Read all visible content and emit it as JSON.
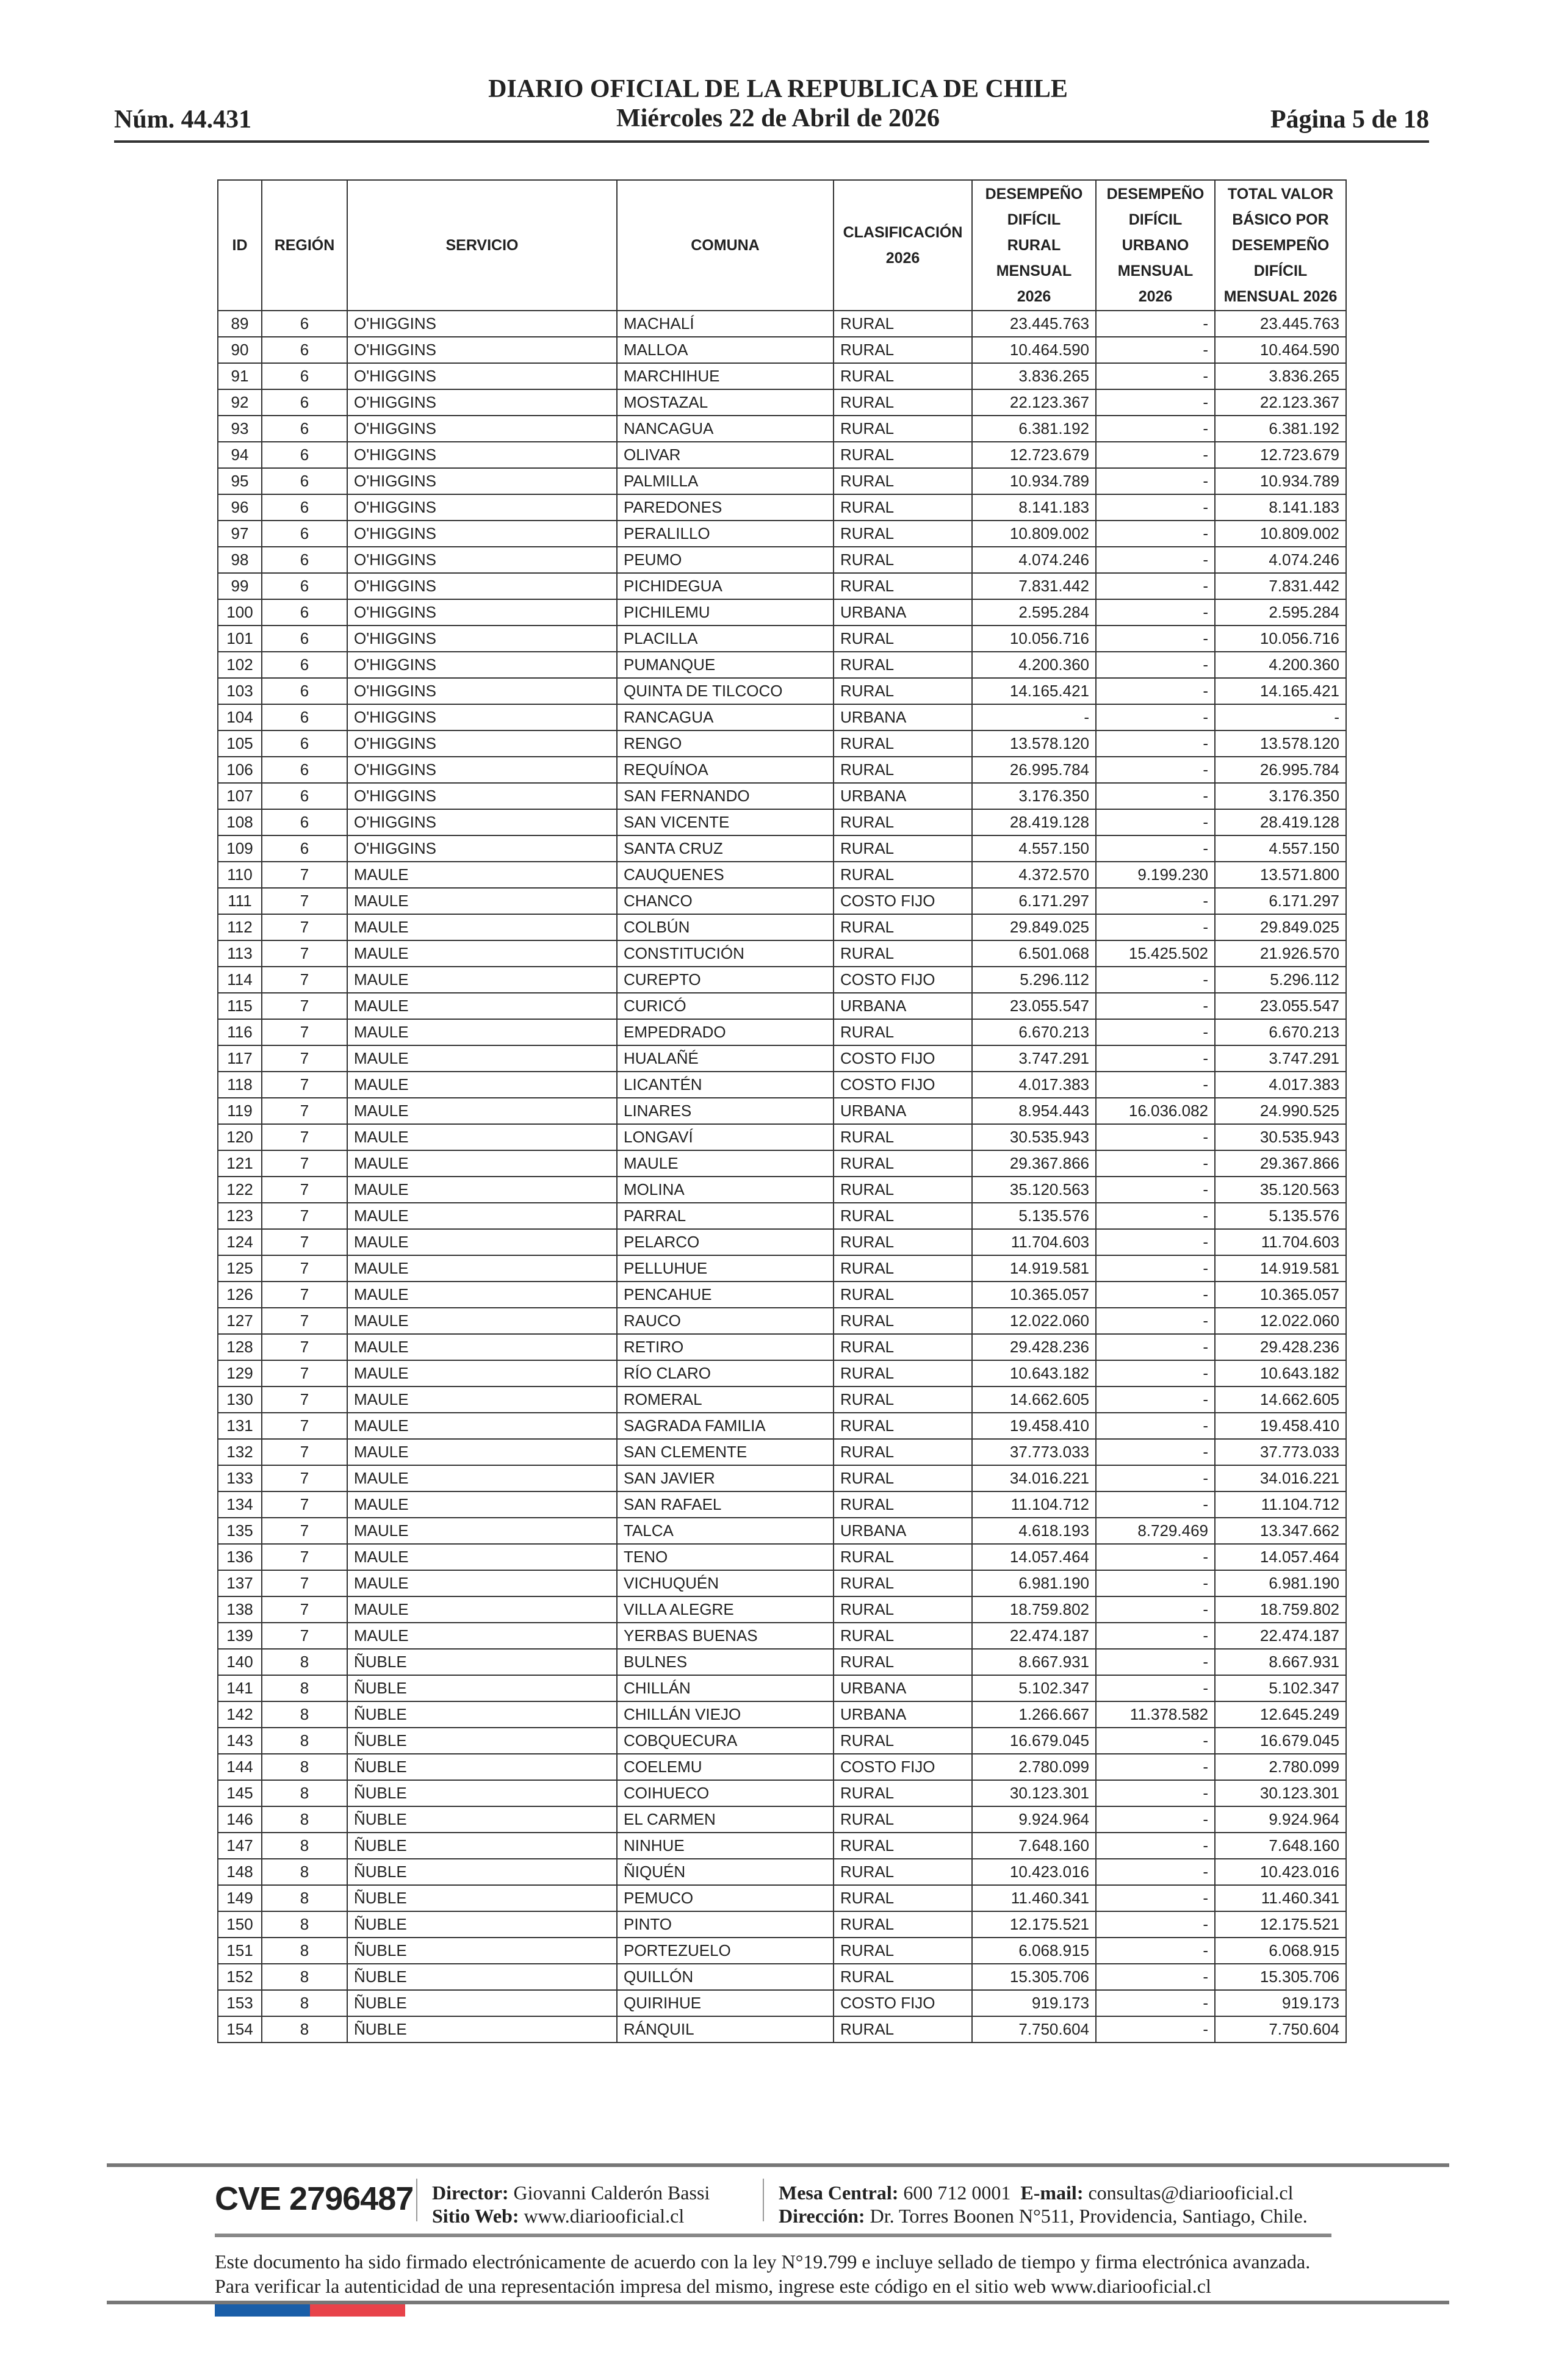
{
  "header": {
    "title": "DIARIO OFICIAL DE LA REPUBLICA DE CHILE",
    "date": "Miércoles 22 de Abril de 2026",
    "number": "Núm. 44.431",
    "page": "Página 5 de 18"
  },
  "table": {
    "columns": [
      "ID",
      "REGIÓN",
      "SERVICIO",
      "COMUNA",
      "CLASIFICACIÓN 2026",
      "DESEMPEÑO DIFÍCIL RURAL MENSUAL 2026",
      "DESEMPEÑO DIFÍCIL URBANO MENSUAL 2026",
      "TOTAL VALOR BÁSICO POR DESEMPEÑO DIFÍCIL MENSUAL 2026"
    ],
    "rows": [
      [
        "89",
        "6",
        "O'HIGGINS",
        "MACHALÍ",
        "RURAL",
        "23.445.763",
        "-",
        "23.445.763"
      ],
      [
        "90",
        "6",
        "O'HIGGINS",
        "MALLOA",
        "RURAL",
        "10.464.590",
        "-",
        "10.464.590"
      ],
      [
        "91",
        "6",
        "O'HIGGINS",
        "MARCHIHUE",
        "RURAL",
        "3.836.265",
        "-",
        "3.836.265"
      ],
      [
        "92",
        "6",
        "O'HIGGINS",
        "MOSTAZAL",
        "RURAL",
        "22.123.367",
        "-",
        "22.123.367"
      ],
      [
        "93",
        "6",
        "O'HIGGINS",
        "NANCAGUA",
        "RURAL",
        "6.381.192",
        "-",
        "6.381.192"
      ],
      [
        "94",
        "6",
        "O'HIGGINS",
        "OLIVAR",
        "RURAL",
        "12.723.679",
        "-",
        "12.723.679"
      ],
      [
        "95",
        "6",
        "O'HIGGINS",
        "PALMILLA",
        "RURAL",
        "10.934.789",
        "-",
        "10.934.789"
      ],
      [
        "96",
        "6",
        "O'HIGGINS",
        "PAREDONES",
        "RURAL",
        "8.141.183",
        "-",
        "8.141.183"
      ],
      [
        "97",
        "6",
        "O'HIGGINS",
        "PERALILLO",
        "RURAL",
        "10.809.002",
        "-",
        "10.809.002"
      ],
      [
        "98",
        "6",
        "O'HIGGINS",
        "PEUMO",
        "RURAL",
        "4.074.246",
        "-",
        "4.074.246"
      ],
      [
        "99",
        "6",
        "O'HIGGINS",
        "PICHIDEGUA",
        "RURAL",
        "7.831.442",
        "-",
        "7.831.442"
      ],
      [
        "100",
        "6",
        "O'HIGGINS",
        "PICHILEMU",
        "URBANA",
        "2.595.284",
        "-",
        "2.595.284"
      ],
      [
        "101",
        "6",
        "O'HIGGINS",
        "PLACILLA",
        "RURAL",
        "10.056.716",
        "-",
        "10.056.716"
      ],
      [
        "102",
        "6",
        "O'HIGGINS",
        "PUMANQUE",
        "RURAL",
        "4.200.360",
        "-",
        "4.200.360"
      ],
      [
        "103",
        "6",
        "O'HIGGINS",
        "QUINTA DE TILCOCO",
        "RURAL",
        "14.165.421",
        "-",
        "14.165.421"
      ],
      [
        "104",
        "6",
        "O'HIGGINS",
        "RANCAGUA",
        "URBANA",
        "-",
        "-",
        "-"
      ],
      [
        "105",
        "6",
        "O'HIGGINS",
        "RENGO",
        "RURAL",
        "13.578.120",
        "-",
        "13.578.120"
      ],
      [
        "106",
        "6",
        "O'HIGGINS",
        "REQUÍNOA",
        "RURAL",
        "26.995.784",
        "-",
        "26.995.784"
      ],
      [
        "107",
        "6",
        "O'HIGGINS",
        "SAN FERNANDO",
        "URBANA",
        "3.176.350",
        "-",
        "3.176.350"
      ],
      [
        "108",
        "6",
        "O'HIGGINS",
        "SAN VICENTE",
        "RURAL",
        "28.419.128",
        "-",
        "28.419.128"
      ],
      [
        "109",
        "6",
        "O'HIGGINS",
        "SANTA CRUZ",
        "RURAL",
        "4.557.150",
        "-",
        "4.557.150"
      ],
      [
        "110",
        "7",
        "MAULE",
        "CAUQUENES",
        "RURAL",
        "4.372.570",
        "9.199.230",
        "13.571.800"
      ],
      [
        "111",
        "7",
        "MAULE",
        "CHANCO",
        "COSTO FIJO",
        "6.171.297",
        "-",
        "6.171.297"
      ],
      [
        "112",
        "7",
        "MAULE",
        "COLBÚN",
        "RURAL",
        "29.849.025",
        "-",
        "29.849.025"
      ],
      [
        "113",
        "7",
        "MAULE",
        "CONSTITUCIÓN",
        "RURAL",
        "6.501.068",
        "15.425.502",
        "21.926.570"
      ],
      [
        "114",
        "7",
        "MAULE",
        "CUREPTO",
        "COSTO FIJO",
        "5.296.112",
        "-",
        "5.296.112"
      ],
      [
        "115",
        "7",
        "MAULE",
        "CURICÓ",
        "URBANA",
        "23.055.547",
        "-",
        "23.055.547"
      ],
      [
        "116",
        "7",
        "MAULE",
        "EMPEDRADO",
        "RURAL",
        "6.670.213",
        "-",
        "6.670.213"
      ],
      [
        "117",
        "7",
        "MAULE",
        "HUALAÑÉ",
        "COSTO FIJO",
        "3.747.291",
        "-",
        "3.747.291"
      ],
      [
        "118",
        "7",
        "MAULE",
        "LICANTÉN",
        "COSTO FIJO",
        "4.017.383",
        "-",
        "4.017.383"
      ],
      [
        "119",
        "7",
        "MAULE",
        "LINARES",
        "URBANA",
        "8.954.443",
        "16.036.082",
        "24.990.525"
      ],
      [
        "120",
        "7",
        "MAULE",
        "LONGAVÍ",
        "RURAL",
        "30.535.943",
        "-",
        "30.535.943"
      ],
      [
        "121",
        "7",
        "MAULE",
        "MAULE",
        "RURAL",
        "29.367.866",
        "-",
        "29.367.866"
      ],
      [
        "122",
        "7",
        "MAULE",
        "MOLINA",
        "RURAL",
        "35.120.563",
        "-",
        "35.120.563"
      ],
      [
        "123",
        "7",
        "MAULE",
        "PARRAL",
        "RURAL",
        "5.135.576",
        "-",
        "5.135.576"
      ],
      [
        "124",
        "7",
        "MAULE",
        "PELARCO",
        "RURAL",
        "11.704.603",
        "-",
        "11.704.603"
      ],
      [
        "125",
        "7",
        "MAULE",
        "PELLUHUE",
        "RURAL",
        "14.919.581",
        "-",
        "14.919.581"
      ],
      [
        "126",
        "7",
        "MAULE",
        "PENCAHUE",
        "RURAL",
        "10.365.057",
        "-",
        "10.365.057"
      ],
      [
        "127",
        "7",
        "MAULE",
        "RAUCO",
        "RURAL",
        "12.022.060",
        "-",
        "12.022.060"
      ],
      [
        "128",
        "7",
        "MAULE",
        "RETIRO",
        "RURAL",
        "29.428.236",
        "-",
        "29.428.236"
      ],
      [
        "129",
        "7",
        "MAULE",
        "RÍO CLARO",
        "RURAL",
        "10.643.182",
        "-",
        "10.643.182"
      ],
      [
        "130",
        "7",
        "MAULE",
        "ROMERAL",
        "RURAL",
        "14.662.605",
        "-",
        "14.662.605"
      ],
      [
        "131",
        "7",
        "MAULE",
        "SAGRADA FAMILIA",
        "RURAL",
        "19.458.410",
        "-",
        "19.458.410"
      ],
      [
        "132",
        "7",
        "MAULE",
        "SAN CLEMENTE",
        "RURAL",
        "37.773.033",
        "-",
        "37.773.033"
      ],
      [
        "133",
        "7",
        "MAULE",
        "SAN JAVIER",
        "RURAL",
        "34.016.221",
        "-",
        "34.016.221"
      ],
      [
        "134",
        "7",
        "MAULE",
        "SAN RAFAEL",
        "RURAL",
        "11.104.712",
        "-",
        "11.104.712"
      ],
      [
        "135",
        "7",
        "MAULE",
        "TALCA",
        "URBANA",
        "4.618.193",
        "8.729.469",
        "13.347.662"
      ],
      [
        "136",
        "7",
        "MAULE",
        "TENO",
        "RURAL",
        "14.057.464",
        "-",
        "14.057.464"
      ],
      [
        "137",
        "7",
        "MAULE",
        "VICHUQUÉN",
        "RURAL",
        "6.981.190",
        "-",
        "6.981.190"
      ],
      [
        "138",
        "7",
        "MAULE",
        "VILLA ALEGRE",
        "RURAL",
        "18.759.802",
        "-",
        "18.759.802"
      ],
      [
        "139",
        "7",
        "MAULE",
        "YERBAS BUENAS",
        "RURAL",
        "22.474.187",
        "-",
        "22.474.187"
      ],
      [
        "140",
        "8",
        "ÑUBLE",
        "BULNES",
        "RURAL",
        "8.667.931",
        "-",
        "8.667.931"
      ],
      [
        "141",
        "8",
        "ÑUBLE",
        "CHILLÁN",
        "URBANA",
        "5.102.347",
        "-",
        "5.102.347"
      ],
      [
        "142",
        "8",
        "ÑUBLE",
        "CHILLÁN VIEJO",
        "URBANA",
        "1.266.667",
        "11.378.582",
        "12.645.249"
      ],
      [
        "143",
        "8",
        "ÑUBLE",
        "COBQUECURA",
        "RURAL",
        "16.679.045",
        "-",
        "16.679.045"
      ],
      [
        "144",
        "8",
        "ÑUBLE",
        "COELEMU",
        "COSTO FIJO",
        "2.780.099",
        "-",
        "2.780.099"
      ],
      [
        "145",
        "8",
        "ÑUBLE",
        "COIHUECO",
        "RURAL",
        "30.123.301",
        "-",
        "30.123.301"
      ],
      [
        "146",
        "8",
        "ÑUBLE",
        "EL CARMEN",
        "RURAL",
        "9.924.964",
        "-",
        "9.924.964"
      ],
      [
        "147",
        "8",
        "ÑUBLE",
        "NINHUE",
        "RURAL",
        "7.648.160",
        "-",
        "7.648.160"
      ],
      [
        "148",
        "8",
        "ÑUBLE",
        "ÑIQUÉN",
        "RURAL",
        "10.423.016",
        "-",
        "10.423.016"
      ],
      [
        "149",
        "8",
        "ÑUBLE",
        "PEMUCO",
        "RURAL",
        "11.460.341",
        "-",
        "11.460.341"
      ],
      [
        "150",
        "8",
        "ÑUBLE",
        "PINTO",
        "RURAL",
        "12.175.521",
        "-",
        "12.175.521"
      ],
      [
        "151",
        "8",
        "ÑUBLE",
        "PORTEZUELO",
        "RURAL",
        "6.068.915",
        "-",
        "6.068.915"
      ],
      [
        "152",
        "8",
        "ÑUBLE",
        "QUILLÓN",
        "RURAL",
        "15.305.706",
        "-",
        "15.305.706"
      ],
      [
        "153",
        "8",
        "ÑUBLE",
        "QUIRIHUE",
        "COSTO FIJO",
        "919.173",
        "-",
        "919.173"
      ],
      [
        "154",
        "8",
        "ÑUBLE",
        "RÁNQUIL",
        "RURAL",
        "7.750.604",
        "-",
        "7.750.604"
      ]
    ]
  },
  "footer": {
    "cve": "CVE 2796487",
    "director_label": "Director:",
    "director": "Giovanni Calderón Bassi",
    "web_label": "Sitio Web:",
    "web": "www.diariooficial.cl",
    "phone_label": "Mesa Central:",
    "phone": "600 712 0001",
    "email_label": "E-mail:",
    "email": "consultas@diariooficial.cl",
    "address_label": "Dirección:",
    "address": "Dr. Torres Boonen N°511, Providencia, Santiago, Chile.",
    "legal": "Este documento ha sido firmado electrónicamente de acuerdo con la ley N°19.799 e incluye sellado de tiempo y firma electrónica avanzada. Para verificar la autenticidad de una representación impresa del mismo, ingrese este código en el sitio web www.diariooficial.cl",
    "colors": {
      "flag_blue": "#1a5ea8",
      "flag_red": "#e8434a"
    }
  }
}
